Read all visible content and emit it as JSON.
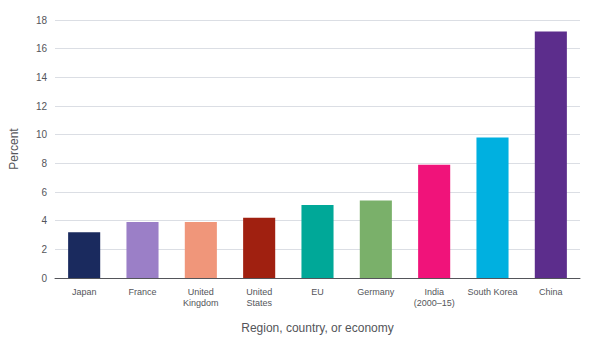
{
  "chart_data": {
    "type": "bar",
    "categories": [
      "Japan",
      "France",
      "United\nKingdom",
      "United\nStates",
      "EU",
      "Germany",
      "India\n(2000–15)",
      "South Korea",
      "China"
    ],
    "values": [
      3.2,
      3.9,
      3.9,
      4.2,
      5.1,
      5.4,
      7.9,
      9.8,
      17.2
    ],
    "colors": [
      "#1a2a5e",
      "#9b7fc7",
      "#f0967a",
      "#a02010",
      "#00a898",
      "#7ab06a",
      "#f0137a",
      "#00b0e0",
      "#5c2d8c"
    ],
    "xlabel": "Region, country, or economy",
    "ylabel": "Percent",
    "ylim": [
      0,
      18
    ],
    "yticks": [
      0,
      2,
      4,
      6,
      8,
      10,
      12,
      14,
      16,
      18
    ],
    "grid": true
  }
}
